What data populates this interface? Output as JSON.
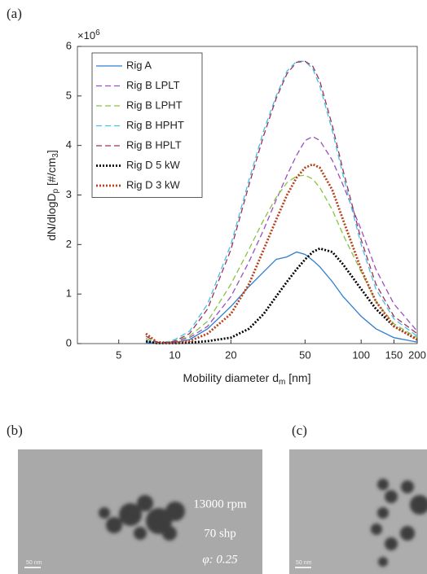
{
  "chart_data": {
    "type": "line",
    "xlabel": {
      "text": "Mobility diameter d",
      "sub": "m",
      "text2": " [nm]"
    },
    "ylabel": {
      "text1": "dN/dlogD",
      "sub1": "p",
      "text2": " [#/cm",
      "sub2": "3",
      "text3": "]"
    },
    "y_multiplier": {
      "base": "×10",
      "exponent": "6"
    },
    "x": [
      7,
      8,
      9,
      10,
      12,
      15,
      20,
      25,
      30,
      35,
      40,
      45,
      50,
      55,
      60,
      70,
      80,
      100,
      120,
      150,
      200
    ],
    "xlim": [
      3,
      200
    ],
    "xticks": [
      5,
      10,
      20,
      50,
      100,
      150,
      200
    ],
    "xscale": "log",
    "ylim": [
      0,
      6
    ],
    "yticks": [
      0,
      1,
      2,
      3,
      4,
      5,
      6
    ],
    "legend": "upper left",
    "series": [
      {
        "name": "Rig A",
        "color": "#2f7fd0",
        "dash": "solid",
        "values": [
          0.02,
          0.01,
          0.01,
          0.02,
          0.08,
          0.3,
          0.75,
          1.15,
          1.45,
          1.7,
          1.75,
          1.85,
          1.8,
          1.68,
          1.55,
          1.25,
          0.95,
          0.55,
          0.3,
          0.12,
          0.03
        ]
      },
      {
        "name": "Rig B LPLT",
        "color": "#9b4fc0",
        "dash": "dashed",
        "values": [
          0.1,
          0.02,
          0.02,
          0.04,
          0.12,
          0.35,
          0.95,
          1.65,
          2.3,
          2.9,
          3.4,
          3.8,
          4.1,
          4.18,
          4.1,
          3.7,
          3.2,
          2.3,
          1.5,
          0.8,
          0.25
        ]
      },
      {
        "name": "Rig B LPHT",
        "color": "#86c440",
        "dash": "dashed",
        "values": [
          0.1,
          0.02,
          0.02,
          0.05,
          0.15,
          0.45,
          1.2,
          1.9,
          2.5,
          2.95,
          3.25,
          3.38,
          3.4,
          3.32,
          3.15,
          2.7,
          2.2,
          1.45,
          0.85,
          0.4,
          0.12
        ]
      },
      {
        "name": "Rig B HPHT",
        "color": "#45c1e6",
        "dash": "dashed",
        "values": [
          0.05,
          0.02,
          0.03,
          0.08,
          0.25,
          0.8,
          2.0,
          3.3,
          4.3,
          5.0,
          5.5,
          5.7,
          5.7,
          5.55,
          5.2,
          4.3,
          3.4,
          2.0,
          1.1,
          0.5,
          0.15
        ]
      },
      {
        "name": "Rig B HPLT",
        "color": "#a0305a",
        "dash": "dashed",
        "values": [
          0.15,
          0.03,
          0.02,
          0.05,
          0.2,
          0.7,
          1.9,
          3.2,
          4.2,
          4.95,
          5.45,
          5.68,
          5.7,
          5.6,
          5.3,
          4.4,
          3.5,
          2.1,
          1.2,
          0.55,
          0.2
        ]
      },
      {
        "name": "Rig D 5 kW",
        "color": "#000000",
        "dash": "dotted",
        "values": [
          0.05,
          0.01,
          0.01,
          0.01,
          0.02,
          0.05,
          0.12,
          0.3,
          0.6,
          0.95,
          1.25,
          1.5,
          1.7,
          1.85,
          1.92,
          1.85,
          1.6,
          1.1,
          0.7,
          0.35,
          0.08
        ]
      },
      {
        "name": "Rig D 3 kW",
        "color": "#b8401a",
        "dash": "dotted",
        "values": [
          0.2,
          0.03,
          0.02,
          0.02,
          0.05,
          0.2,
          0.6,
          1.2,
          1.9,
          2.5,
          3.0,
          3.35,
          3.55,
          3.62,
          3.55,
          3.1,
          2.5,
          1.5,
          0.85,
          0.35,
          0.08
        ]
      }
    ]
  },
  "panel_labels": [
    "(a)",
    "(b)",
    "(c)"
  ],
  "image_b": {
    "annotations": [
      "13000 rpm",
      "70 shp",
      "φ: 0.25"
    ],
    "scale_bar": "50 nm"
  },
  "image_c": {
    "scale_bar": "50 nm"
  }
}
